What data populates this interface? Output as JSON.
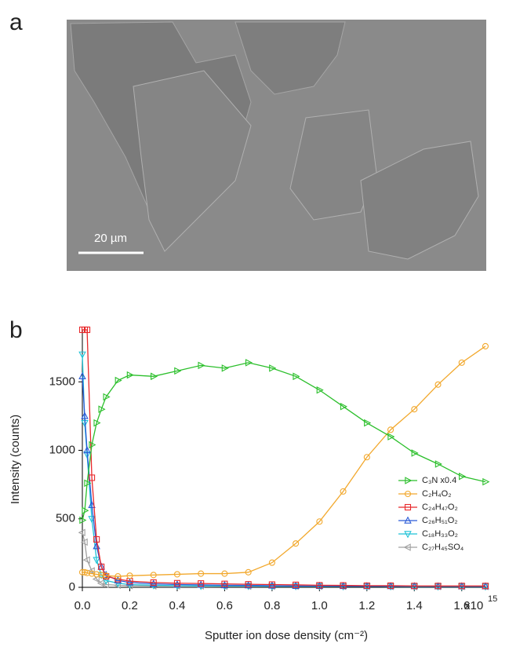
{
  "panel_labels": [
    "a",
    "b"
  ],
  "scale_bar": "20 µm",
  "chart_data": {
    "type": "line",
    "xlabel": "Sputter ion dose density (cm⁻²)",
    "ylabel": "Intensity (counts)",
    "x_multiplier": "x10",
    "x_exponent": "15",
    "x": [
      0,
      0.01,
      0.02,
      0.04,
      0.06,
      0.08,
      0.1,
      0.15,
      0.2,
      0.3,
      0.4,
      0.5,
      0.6,
      0.7,
      0.8,
      0.9,
      1.0,
      1.1,
      1.2,
      1.3,
      1.4,
      1.5,
      1.6,
      1.7
    ],
    "xlim": [
      0,
      1.71
    ],
    "xticks": [
      {
        "value": 0,
        "label": "0.0"
      },
      0.2,
      0.4,
      0.6,
      0.8,
      {
        "value": 1,
        "label": "1.0"
      },
      1.2,
      1.4,
      1.6
    ],
    "ylim": [
      0,
      1880
    ],
    "yticks": [
      0,
      500,
      1000,
      1500
    ],
    "series": [
      {
        "name": "C₃N x0.4",
        "color": "#2bbf2b",
        "marker": "triangle-right",
        "values": [
          490,
          560,
          760,
          1040,
          1200,
          1300,
          1390,
          1510,
          1550,
          1540,
          1580,
          1620,
          1600,
          1640,
          1600,
          1540,
          1440,
          1320,
          1200,
          1100,
          980,
          900,
          810,
          770
        ]
      },
      {
        "name": "C₂H₄O₂",
        "color": "#f2a82c",
        "marker": "circle",
        "values": [
          110,
          110,
          105,
          100,
          95,
          90,
          85,
          80,
          85,
          90,
          95,
          100,
          100,
          110,
          180,
          320,
          480,
          700,
          950,
          1150,
          1300,
          1480,
          1640,
          1760
        ]
      },
      {
        "name": "C₂₄H₄₇O₂",
        "color": "#e8282b",
        "marker": "square",
        "values": [
          1880,
          1880,
          1880,
          800,
          350,
          150,
          80,
          60,
          45,
          35,
          30,
          28,
          25,
          22,
          20,
          18,
          15,
          14,
          12,
          12,
          10,
          10,
          10,
          10
        ]
      },
      {
        "name": "C₂₆H₅₁O₂",
        "color": "#2a5bd7",
        "marker": "triangle-up",
        "values": [
          1540,
          1250,
          1000,
          600,
          300,
          150,
          90,
          50,
          35,
          25,
          20,
          18,
          15,
          14,
          12,
          10,
          10,
          9,
          8,
          8,
          8,
          7,
          7,
          7
        ]
      },
      {
        "name": "C₁₈H₃₃O₂",
        "color": "#1fc2d6",
        "marker": "triangle-down",
        "values": [
          1700,
          1200,
          970,
          500,
          200,
          90,
          50,
          30,
          20,
          15,
          12,
          10,
          10,
          10,
          8,
          8,
          8,
          7,
          7,
          7,
          6,
          6,
          6,
          6
        ]
      },
      {
        "name": "C₂₇H₄₅SO₄",
        "color": "#a0a0a0",
        "marker": "triangle-left",
        "values": [
          400,
          330,
          200,
          120,
          60,
          30,
          20,
          15,
          12,
          10,
          10,
          10,
          8,
          8,
          8,
          8,
          7,
          7,
          7,
          6,
          6,
          6,
          6,
          6
        ]
      }
    ]
  }
}
